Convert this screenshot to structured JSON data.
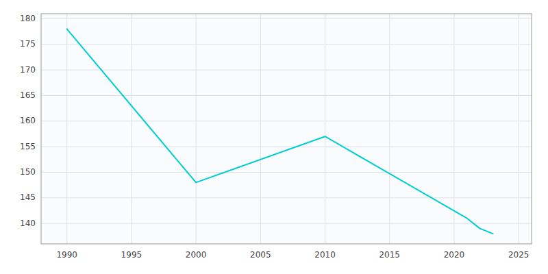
{
  "chart_data": {
    "type": "line",
    "x": [
      1990,
      2000,
      2010,
      2021,
      2022,
      2023
    ],
    "values": [
      178,
      148,
      157,
      141,
      139,
      138
    ],
    "color": "#00CED1",
    "xlim": [
      1988,
      2026
    ],
    "ylim": [
      136,
      181
    ],
    "xticks": [
      1990,
      1995,
      2000,
      2005,
      2010,
      2015,
      2020,
      2025
    ],
    "yticks": [
      140,
      145,
      150,
      155,
      160,
      165,
      170,
      175,
      180
    ],
    "grid": true
  }
}
